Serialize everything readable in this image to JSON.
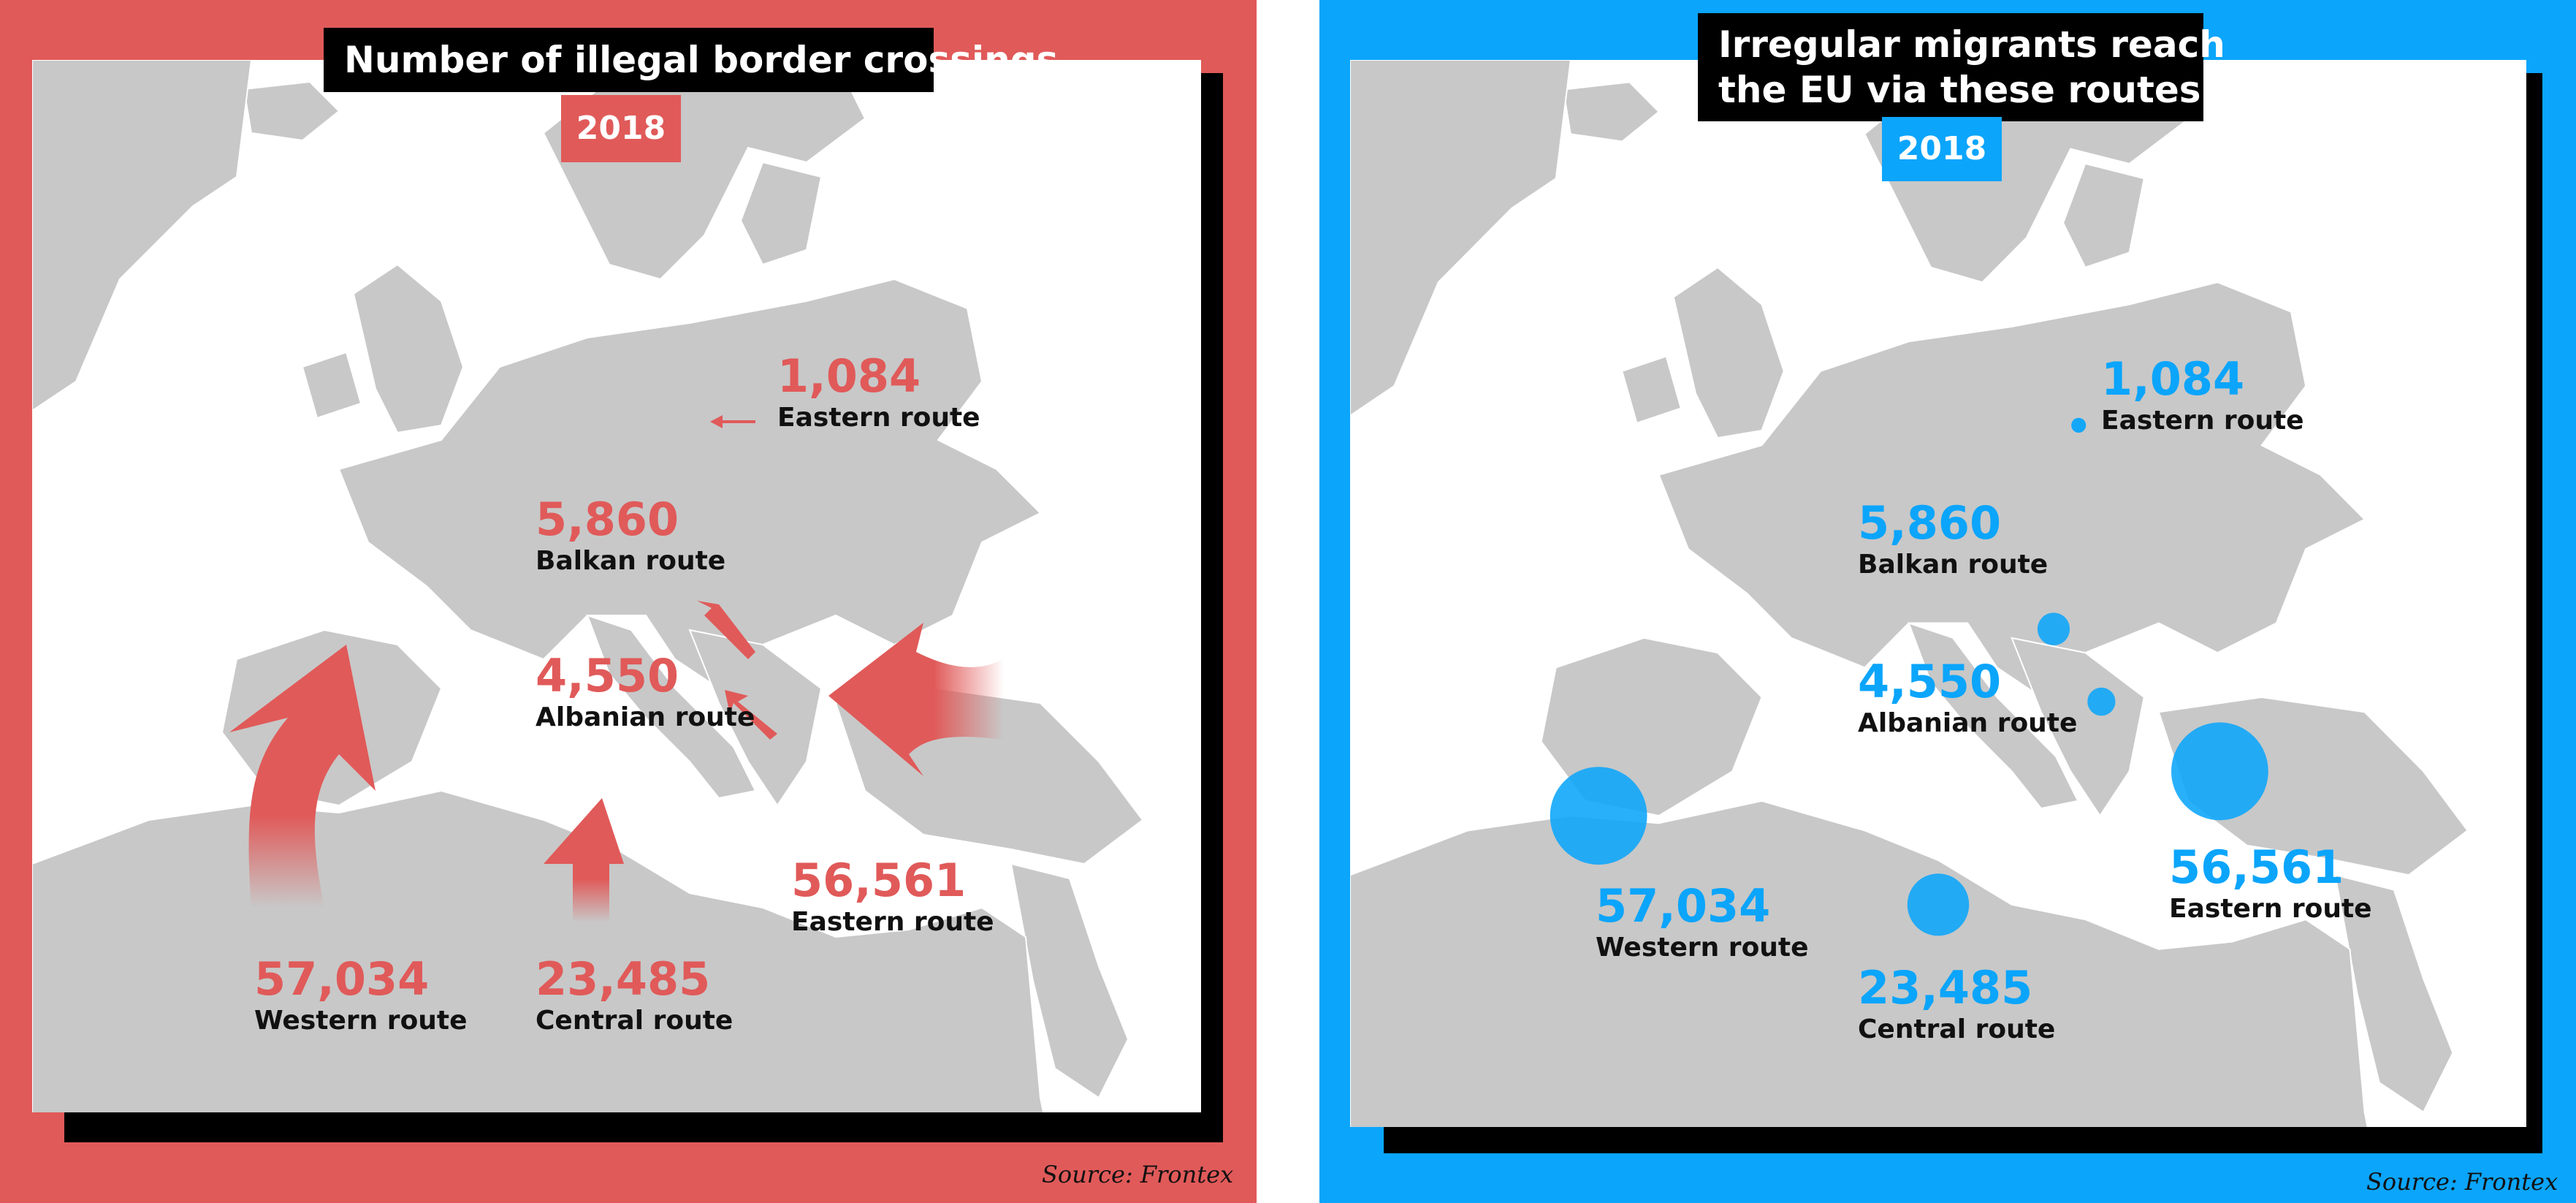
{
  "left_panel": {
    "title": "Number of illegal border crossings",
    "year": "2018",
    "source": "Source: Frontex",
    "colors": {
      "panel": "#E05A59",
      "accent": "#E05A59"
    },
    "routes": [
      {
        "value": "1,084",
        "name": "Eastern route"
      },
      {
        "value": "5,860",
        "name": "Balkan route"
      },
      {
        "value": "4,550",
        "name": "Albanian route"
      },
      {
        "value": "56,561",
        "name": "Eastern route"
      },
      {
        "value": "57,034",
        "name": "Western route"
      },
      {
        "value": "23,485",
        "name": "Central route"
      }
    ]
  },
  "right_panel": {
    "title_line1": "Irregular migrants reach",
    "title_line2": "the EU via these routes",
    "year": "2018",
    "source": "Source: Frontex",
    "colors": {
      "panel": "#0BA5FB",
      "accent": "#0BA5FB"
    },
    "routes": [
      {
        "value": "1,084",
        "name": "Eastern route"
      },
      {
        "value": "5,860",
        "name": "Balkan route"
      },
      {
        "value": "4,550",
        "name": "Albanian route"
      },
      {
        "value": "56,561",
        "name": "Eastern route"
      },
      {
        "value": "57,034",
        "name": "Western route"
      },
      {
        "value": "23,485",
        "name": "Central route"
      }
    ]
  }
}
